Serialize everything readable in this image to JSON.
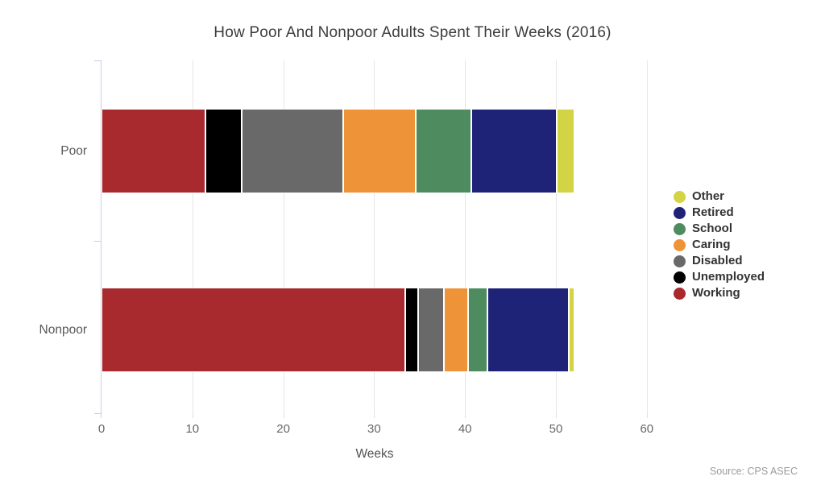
{
  "title": "How Poor And Nonpoor Adults Spent Their Weeks (2016)",
  "source_note": "Source: CPS ASEC",
  "chart_data": {
    "type": "bar",
    "orientation": "horizontal",
    "stacked": true,
    "title": "How Poor And Nonpoor Adults Spent Their Weeks (2016)",
    "xlabel": "Weeks",
    "ylabel": "",
    "categories": [
      "Poor",
      "Nonpoor"
    ],
    "series": [
      {
        "name": "Working",
        "color": "#a8292e",
        "values": [
          11.4,
          33.4
        ]
      },
      {
        "name": "Unemployed",
        "color": "#000000",
        "values": [
          4.0,
          1.4
        ]
      },
      {
        "name": "Disabled",
        "color": "#696969",
        "values": [
          11.2,
          2.9
        ]
      },
      {
        "name": "Caring",
        "color": "#ef9339",
        "values": [
          8.0,
          2.6
        ]
      },
      {
        "name": "School",
        "color": "#4e8c5f",
        "values": [
          6.1,
          2.2
        ]
      },
      {
        "name": "Retired",
        "color": "#1f2377",
        "values": [
          9.4,
          8.9
        ]
      },
      {
        "name": "Other",
        "color": "#d3d445",
        "values": [
          1.9,
          0.6
        ]
      }
    ],
    "category_totals": [
      52,
      52
    ],
    "x_ticks": [
      0,
      10,
      20,
      30,
      40,
      50,
      60
    ],
    "xlim": [
      0,
      61.3
    ],
    "grid": true,
    "legend_position": "right",
    "legend_order": [
      "Other",
      "Retired",
      "School",
      "Caring",
      "Disabled",
      "Unemployed",
      "Working"
    ],
    "axis_color": "#c9cde3",
    "gridline_color": "#e6e6e6"
  }
}
